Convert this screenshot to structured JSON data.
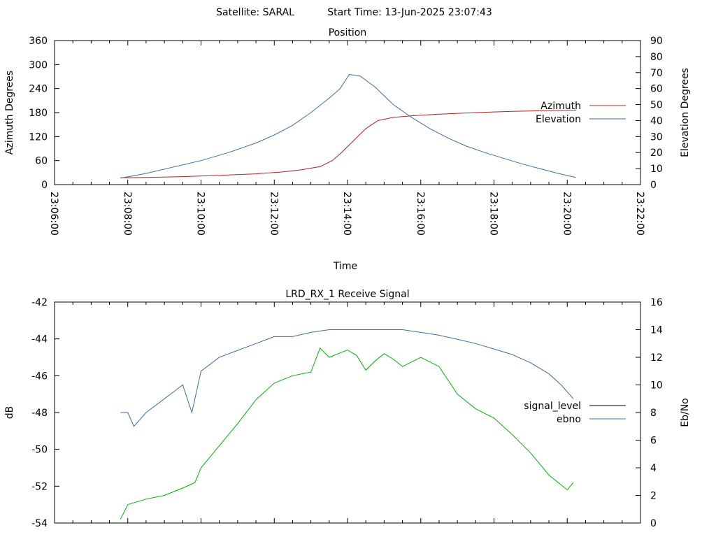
{
  "header": {
    "satellite": "Satellite: SARAL",
    "start_time": "Start Time: 13-Jun-2025 23:07:43"
  },
  "time_ticks": [
    "23:06:00",
    "23:08:00",
    "23:10:00",
    "23:12:00",
    "23:14:00",
    "23:16:00",
    "23:18:00",
    "23:20:00",
    "23:22:00"
  ],
  "colors": {
    "azimuth": "#b22222",
    "elevation": "#3a6ea5",
    "signal_level": "#000000",
    "ebno": "#3a6ea5",
    "signal_trace": "#00b000"
  },
  "chart_data": [
    {
      "type": "line",
      "title": "Position",
      "xlabel": "Time",
      "ylabel": "Azimuth Degrees",
      "y2label": "Elevation Degrees",
      "xlim": [
        "23:06:00",
        "23:22:00"
      ],
      "ylim": [
        0,
        360
      ],
      "y2lim": [
        0,
        90
      ],
      "yticks": [
        0,
        60,
        120,
        180,
        240,
        300,
        360
      ],
      "y2ticks": [
        0,
        10,
        20,
        30,
        40,
        50,
        60,
        70,
        80,
        90
      ],
      "legend": "right",
      "grid": false,
      "series": [
        {
          "name": "Azimuth",
          "axis": "left",
          "color": "#b22222",
          "points": [
            [
              "23:07:48",
              17
            ],
            [
              "23:08:30",
              18
            ],
            [
              "23:09:30",
              20
            ],
            [
              "23:10:30",
              23
            ],
            [
              "23:11:30",
              27
            ],
            [
              "23:12:15",
              32
            ],
            [
              "23:12:45",
              37
            ],
            [
              "23:13:15",
              45
            ],
            [
              "23:13:35",
              60
            ],
            [
              "23:13:50",
              80
            ],
            [
              "23:14:10",
              110
            ],
            [
              "23:14:30",
              140
            ],
            [
              "23:14:50",
              160
            ],
            [
              "23:15:15",
              168
            ],
            [
              "23:15:45",
              172
            ],
            [
              "23:16:30",
              176
            ],
            [
              "23:17:30",
              180
            ],
            [
              "23:18:30",
              183
            ],
            [
              "23:19:30",
              185
            ],
            [
              "23:20:15",
              186
            ]
          ]
        },
        {
          "name": "Elevation",
          "axis": "right",
          "color": "#3a6ea5",
          "points": [
            [
              "23:07:48",
              4
            ],
            [
              "23:08:30",
              7
            ],
            [
              "23:09:15",
              11
            ],
            [
              "23:10:00",
              15
            ],
            [
              "23:10:45",
              20
            ],
            [
              "23:11:30",
              26
            ],
            [
              "23:12:00",
              31
            ],
            [
              "23:12:30",
              37
            ],
            [
              "23:13:00",
              45
            ],
            [
              "23:13:30",
              54
            ],
            [
              "23:13:48",
              60
            ],
            [
              "23:14:03",
              68.8
            ],
            [
              "23:14:20",
              68
            ],
            [
              "23:14:45",
              61
            ],
            [
              "23:15:15",
              50
            ],
            [
              "23:15:45",
              42
            ],
            [
              "23:16:15",
              35
            ],
            [
              "23:16:45",
              29
            ],
            [
              "23:17:15",
              24
            ],
            [
              "23:17:45",
              20
            ],
            [
              "23:18:15",
              16.5
            ],
            [
              "23:18:45",
              13
            ],
            [
              "23:19:15",
              10
            ],
            [
              "23:19:45",
              7
            ],
            [
              "23:20:14",
              4.5
            ]
          ]
        }
      ]
    },
    {
      "type": "line",
      "title": "LRD_RX_1 Receive Signal",
      "xlabel": "",
      "ylabel": "dB",
      "y2label": "Eb/No",
      "xlim": [
        "23:06:00",
        "23:22:00"
      ],
      "ylim": [
        -54,
        -42
      ],
      "y2lim": [
        0,
        16
      ],
      "yticks": [
        -54,
        -52,
        -50,
        -48,
        -46,
        -44,
        -42
      ],
      "y2ticks": [
        0,
        2,
        4,
        6,
        8,
        10,
        12,
        14,
        16
      ],
      "legend": "right",
      "grid": false,
      "series": [
        {
          "name": "signal_level",
          "axis": "left",
          "color": "#000000",
          "points": []
        },
        {
          "name": "ebno",
          "axis": "right",
          "color": "#3a6ea5",
          "points": [
            [
              "23:07:48",
              8
            ],
            [
              "23:08:00",
              8
            ],
            [
              "23:08:10",
              7
            ],
            [
              "23:08:30",
              8
            ],
            [
              "23:09:00",
              9
            ],
            [
              "23:09:15",
              9.5
            ],
            [
              "23:09:30",
              10
            ],
            [
              "23:09:45",
              8
            ],
            [
              "23:10:00",
              11
            ],
            [
              "23:10:30",
              12
            ],
            [
              "23:11:00",
              12.5
            ],
            [
              "23:11:30",
              13
            ],
            [
              "23:12:00",
              13.5
            ],
            [
              "23:12:30",
              13.5
            ],
            [
              "23:13:00",
              13.8
            ],
            [
              "23:13:30",
              14
            ],
            [
              "23:14:00",
              14
            ],
            [
              "23:14:30",
              14
            ],
            [
              "23:15:00",
              14
            ],
            [
              "23:15:30",
              14
            ],
            [
              "23:16:00",
              13.8
            ],
            [
              "23:16:30",
              13.6
            ],
            [
              "23:17:00",
              13.3
            ],
            [
              "23:17:30",
              13
            ],
            [
              "23:18:00",
              12.6
            ],
            [
              "23:18:30",
              12.2
            ],
            [
              "23:19:00",
              11.6
            ],
            [
              "23:19:30",
              10.8
            ],
            [
              "23:19:50",
              10
            ],
            [
              "23:20:10",
              9
            ]
          ]
        },
        {
          "name": "",
          "axis": "left",
          "color": "#00b000",
          "points": [
            [
              "23:07:48",
              -53.8
            ],
            [
              "23:08:00",
              -53
            ],
            [
              "23:08:30",
              -52.7
            ],
            [
              "23:09:00",
              -52.5
            ],
            [
              "23:09:30",
              -52.1
            ],
            [
              "23:09:50",
              -51.8
            ],
            [
              "23:10:00",
              -51
            ],
            [
              "23:10:30",
              -49.8
            ],
            [
              "23:11:00",
              -48.6
            ],
            [
              "23:11:30",
              -47.3
            ],
            [
              "23:12:00",
              -46.4
            ],
            [
              "23:12:30",
              -46
            ],
            [
              "23:13:00",
              -45.8
            ],
            [
              "23:13:15",
              -44.5
            ],
            [
              "23:13:30",
              -45
            ],
            [
              "23:14:00",
              -44.6
            ],
            [
              "23:14:15",
              -44.9
            ],
            [
              "23:14:30",
              -45.7
            ],
            [
              "23:14:45",
              -45.2
            ],
            [
              "23:15:00",
              -44.8
            ],
            [
              "23:15:15",
              -45.1
            ],
            [
              "23:15:30",
              -45.5
            ],
            [
              "23:16:00",
              -45.0
            ],
            [
              "23:16:30",
              -45.5
            ],
            [
              "23:17:00",
              -47.0
            ],
            [
              "23:17:30",
              -47.8
            ],
            [
              "23:18:00",
              -48.3
            ],
            [
              "23:18:30",
              -49.2
            ],
            [
              "23:19:00",
              -50.2
            ],
            [
              "23:19:30",
              -51.4
            ],
            [
              "23:20:00",
              -52.2
            ],
            [
              "23:20:10",
              -51.8
            ]
          ]
        }
      ]
    }
  ]
}
